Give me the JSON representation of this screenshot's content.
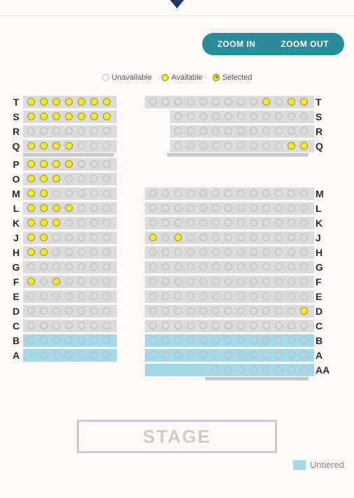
{
  "header": {
    "zoom_in": "ZOOM IN",
    "zoom_out": "ZOOM OUT"
  },
  "legend": {
    "unavailable": "Unavailable",
    "available": "Available",
    "selected": "Selected"
  },
  "stage_label": "STAGE",
  "untiered_label": "Untiered",
  "colors": {
    "available_fill": "#f5e741",
    "available_border": "#a39400",
    "unavailable_border": "#bbb",
    "block_bg": "#dcdcdc",
    "blue_bg": "#a6d9e8",
    "accent": "#2b8c99",
    "bottom_border": "#c9c9c9"
  },
  "rows": [
    {
      "l": "T",
      "left": [
        "a",
        "a",
        "a",
        "a",
        "a",
        "a",
        "a"
      ],
      "gap": "g1",
      "right": [
        "u",
        "u",
        "u",
        "u",
        "u",
        "u",
        "u",
        "u",
        "u",
        "a",
        "u",
        "a",
        "a"
      ],
      "rl": "T",
      "bot": false
    },
    {
      "l": "S",
      "left": [
        "a",
        "a",
        "a",
        "a",
        "a",
        "a",
        "a"
      ],
      "gap": "g2",
      "right": [
        "u",
        "u",
        "u",
        "u",
        "u",
        "u",
        "u",
        "u",
        "u",
        "u",
        "u"
      ],
      "rl": "S",
      "bot": false,
      "indentR": 2
    },
    {
      "l": "R",
      "left": [
        "u",
        "u",
        "u",
        "u",
        "u",
        "u",
        "u"
      ],
      "gap": "g2",
      "right": [
        "u",
        "u",
        "u",
        "u",
        "u",
        "u",
        "u",
        "u",
        "u",
        "u",
        "u"
      ],
      "rl": "R",
      "bot": false,
      "indentR": 2
    },
    {
      "l": "Q",
      "left": [
        "a",
        "a",
        "a",
        "a",
        "u",
        "u",
        "u"
      ],
      "gap": "g2",
      "right": [
        "u",
        "u",
        "u",
        "u",
        "u",
        "u",
        "u",
        "u",
        "u",
        "a",
        "a"
      ],
      "rl": "Q",
      "bot": true,
      "indentR": 2,
      "botR": true
    },
    {
      "l": "P",
      "left": [
        "a",
        "a",
        "a",
        "a",
        "u",
        "u",
        "u"
      ],
      "gap": "g3",
      "right": [],
      "rl": "",
      "bot": false
    },
    {
      "l": "O",
      "left": [
        "a",
        "a",
        "a",
        "u",
        "u",
        "u",
        "u"
      ],
      "gap": "g3",
      "right": [],
      "rl": "",
      "bot": false
    },
    {
      "l": "M",
      "left": [
        "a",
        "a",
        "u",
        "u",
        "u",
        "u",
        "u"
      ],
      "gap": "g1",
      "right": [
        "u",
        "u",
        "u",
        "u",
        "u",
        "u",
        "u",
        "u",
        "u",
        "u",
        "u",
        "u",
        "u"
      ],
      "rl": "M",
      "bot": false
    },
    {
      "l": "L",
      "left": [
        "a",
        "a",
        "a",
        "a",
        "u",
        "u",
        "u"
      ],
      "gap": "g1",
      "right": [
        "u",
        "u",
        "u",
        "u",
        "u",
        "u",
        "u",
        "u",
        "u",
        "u",
        "u",
        "u",
        "u"
      ],
      "rl": "L",
      "bot": false
    },
    {
      "l": "K",
      "left": [
        "a",
        "a",
        "a",
        "u",
        "u",
        "u",
        "u"
      ],
      "gap": "g1",
      "right": [
        "u",
        "u",
        "u",
        "u",
        "u",
        "u",
        "u",
        "u",
        "u",
        "u",
        "u",
        "u",
        "u"
      ],
      "rl": "K",
      "bot": false
    },
    {
      "l": "J",
      "left": [
        "a",
        "a",
        "u",
        "u",
        "u",
        "u",
        "u"
      ],
      "gap": "g1",
      "right": [
        "a",
        "u",
        "a",
        "u",
        "u",
        "u",
        "u",
        "u",
        "u",
        "u",
        "u",
        "u",
        "u"
      ],
      "rl": "J",
      "bot": false
    },
    {
      "l": "H",
      "left": [
        "a",
        "a",
        "u",
        "u",
        "u",
        "u",
        "u"
      ],
      "gap": "g1",
      "right": [
        "u",
        "u",
        "u",
        "u",
        "u",
        "u",
        "u",
        "u",
        "u",
        "u",
        "u",
        "u",
        "u"
      ],
      "rl": "H",
      "bot": false
    },
    {
      "l": "G",
      "left": [
        "u",
        "u",
        "u",
        "u",
        "u",
        "u",
        "u"
      ],
      "gap": "g1",
      "right": [
        "u",
        "u",
        "u",
        "u",
        "u",
        "u",
        "u",
        "u",
        "u",
        "u",
        "u",
        "u",
        "u"
      ],
      "rl": "G",
      "bot": false
    },
    {
      "l": "F",
      "left": [
        "a",
        "u",
        "a",
        "u",
        "u",
        "u",
        "u"
      ],
      "gap": "g1",
      "right": [
        "u",
        "u",
        "u",
        "u",
        "u",
        "u",
        "u",
        "u",
        "u",
        "u",
        "u",
        "u",
        "u"
      ],
      "rl": "F",
      "bot": false
    },
    {
      "l": "E",
      "left": [
        "u",
        "u",
        "u",
        "u",
        "u",
        "u",
        "u"
      ],
      "gap": "g1",
      "right": [
        "u",
        "u",
        "u",
        "u",
        "u",
        "u",
        "u",
        "u",
        "u",
        "u",
        "u",
        "u",
        "u"
      ],
      "rl": "E",
      "bot": false
    },
    {
      "l": "D",
      "left": [
        "u",
        "u",
        "u",
        "u",
        "u",
        "u",
        "u"
      ],
      "gap": "g1",
      "right": [
        "u",
        "u",
        "u",
        "u",
        "u",
        "u",
        "u",
        "u",
        "u",
        "u",
        "u",
        "u",
        "a"
      ],
      "rl": "D",
      "bot": false
    },
    {
      "l": "C",
      "left": [
        "u",
        "u",
        "u",
        "u",
        "u",
        "u",
        "u"
      ],
      "gap": "g1",
      "right": [
        "u",
        "u",
        "u",
        "u",
        "u",
        "u",
        "u",
        "u",
        "u",
        "u",
        "u",
        "u",
        "u"
      ],
      "rl": "C",
      "bot": false
    },
    {
      "l": "B",
      "left": [
        "u",
        "u",
        "u",
        "u",
        "u",
        "u",
        "u"
      ],
      "gap": "g1",
      "right": [
        "u",
        "u",
        "u",
        "u",
        "u",
        "u",
        "u",
        "u",
        "u",
        "u",
        "u",
        "u",
        "u"
      ],
      "rl": "B",
      "blue": true,
      "bot": false
    },
    {
      "l": "A",
      "left": [
        "",
        "u",
        "u",
        "u",
        "u",
        "u",
        "u"
      ],
      "gap": "g1",
      "right": [
        "u",
        "u",
        "u",
        "u",
        "u",
        "u",
        "u",
        "u",
        "u",
        "u",
        "u",
        "u",
        "u"
      ],
      "rl": "A",
      "blue": true,
      "bot": false
    },
    {
      "l": "",
      "left": [],
      "gap": "g1",
      "right": [
        "",
        "",
        "",
        "",
        "",
        "u",
        "u",
        "u",
        "u",
        "u",
        "u",
        "u",
        "u"
      ],
      "rl": "AA",
      "blue": true,
      "bot": true,
      "botR": true,
      "noleftblock": true,
      "indentRbg": 5
    }
  ]
}
